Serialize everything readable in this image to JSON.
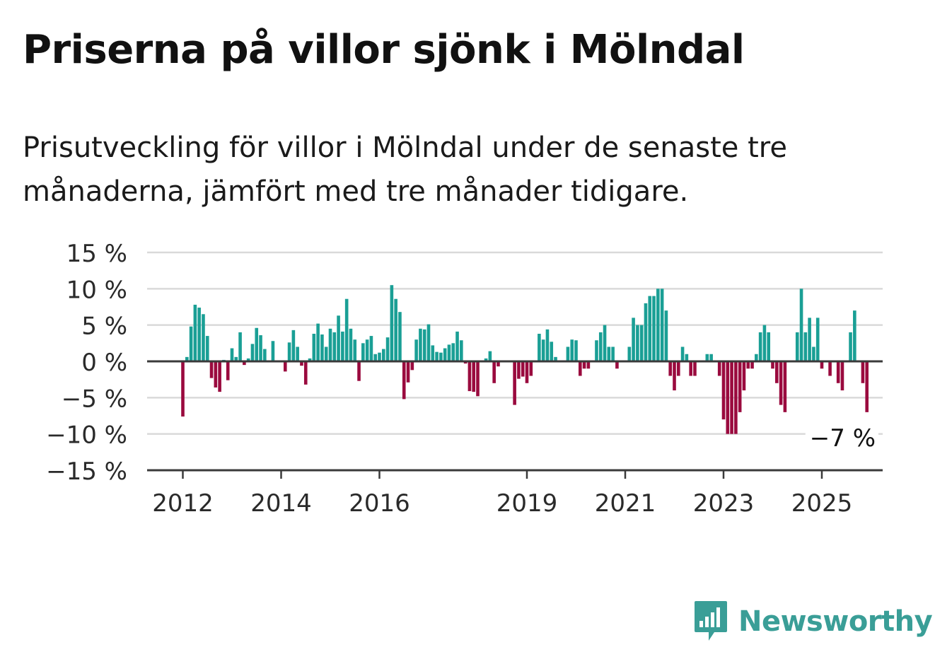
{
  "header": {
    "title": "Priserna på villor sjönk i Mölndal",
    "subtitle": "Prisutveckling för villor i Mölndal under de senaste tre månaderna, jämfört med tre månader tidigare."
  },
  "brand": {
    "name": "Newsworthy",
    "logo_icon": "bar-chart-speech-bubble-icon"
  },
  "colors": {
    "positive": "#1a9f95",
    "negative": "#9a0a3e",
    "grid": "#d9d9d9",
    "axis": "#3a3a3a",
    "text": "#2a2a2a"
  },
  "chart_data": {
    "type": "bar",
    "title": "Priserna på villor sjönk i Mölndal",
    "subtitle": "Prisutveckling för villor i Mölndal under de senaste tre månaderna, jämfört med tre månader tidigare.",
    "ylim": [
      -15,
      15
    ],
    "y_ticks": [
      15,
      10,
      5,
      0,
      -5,
      -10,
      -15
    ],
    "y_tick_labels": [
      "15 %",
      "10 %",
      "5 %",
      "0 %",
      "−5 %",
      "−10 %",
      "−15 %"
    ],
    "x_ticks": [
      2012,
      2014,
      2016,
      2019,
      2021,
      2023,
      2025
    ],
    "x_tick_labels": [
      "2012",
      "2014",
      "2016",
      "2019",
      "2021",
      "2023",
      "2025"
    ],
    "start": "2012-01",
    "grid": true,
    "annotation": {
      "text": "−7 %",
      "target": "last"
    },
    "values": [
      -7.6,
      0.6,
      4.8,
      7.8,
      7.4,
      6.5,
      3.5,
      -2.3,
      -3.6,
      -4.2,
      0.2,
      -2.6,
      1.8,
      0.6,
      4.0,
      -0.5,
      0.4,
      2.4,
      4.6,
      3.6,
      1.7,
      0,
      2.8,
      0,
      0,
      -1.4,
      2.6,
      4.3,
      2.0,
      -0.6,
      -3.2,
      0.4,
      3.8,
      5.2,
      3.7,
      2.0,
      4.5,
      4.0,
      6.3,
      4.1,
      8.6,
      4.5,
      3.0,
      -2.7,
      2.5,
      3.0,
      3.5,
      1.0,
      1.2,
      1.7,
      3.3,
      10.5,
      8.6,
      6.8,
      -5.2,
      -2.9,
      -1.2,
      3.0,
      4.5,
      4.4,
      5.1,
      2.2,
      1.3,
      1.2,
      1.8,
      2.3,
      2.5,
      4.1,
      2.9,
      -0.3,
      -4.1,
      -4.2,
      -4.8,
      0,
      0.4,
      1.4,
      -3.0,
      -0.7,
      0,
      0,
      0,
      -6.0,
      -2.4,
      -2.1,
      -3.0,
      -2.0,
      0,
      3.8,
      3.0,
      4.4,
      2.7,
      0.6,
      0,
      0,
      2.0,
      3.0,
      2.9,
      -2.0,
      -1.0,
      -1.0,
      0,
      2.9,
      4.0,
      5.0,
      2.0,
      2.0,
      -1.0,
      0,
      0,
      2.0,
      6.0,
      5.0,
      5.0,
      8.0,
      9.0,
      9.0,
      10.0,
      10.0,
      7.0,
      -2.0,
      -4.0,
      -2.0,
      2.0,
      1.0,
      -2.0,
      -2.0,
      0,
      0,
      1.0,
      1.0,
      0,
      -2.0,
      -8.0,
      -10.0,
      -10.0,
      -10.0,
      -7.0,
      -4.0,
      -1.0,
      -1.0,
      1.0,
      4.0,
      5.0,
      4.0,
      -1.0,
      -3.0,
      -6.0,
      -7.0,
      0,
      0,
      4.0,
      10.0,
      4.0,
      6.0,
      2.0,
      6.0,
      -1.0,
      0,
      -2.0,
      0,
      -3.0,
      -4.0,
      0,
      4.0,
      7.0,
      0,
      -3.0,
      -7.0
    ]
  }
}
